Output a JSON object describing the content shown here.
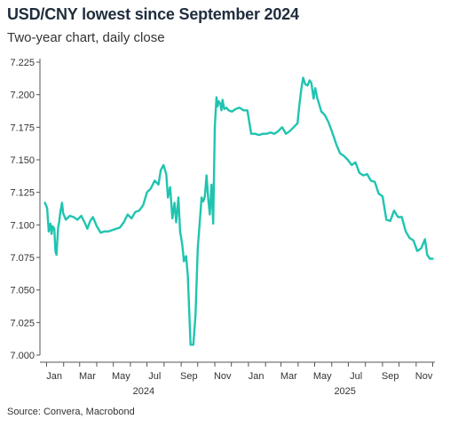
{
  "chart_data": {
    "type": "line",
    "title": "USD/CNY lowest since September 2024",
    "subtitle": "Two-year chart, daily close",
    "source": "Source: Convera, Macrobond",
    "xlabel": "",
    "ylabel": "",
    "ylim": [
      7.0,
      7.225
    ],
    "yticks": [
      "7.000",
      "7.025",
      "7.050",
      "7.075",
      "7.100",
      "7.125",
      "7.150",
      "7.175",
      "7.200",
      "7.225"
    ],
    "xlim": [
      "2023-12-20",
      "2025-12-05"
    ],
    "xticks": [
      {
        "label": "Jan",
        "date": "2024-01-15"
      },
      {
        "label": "Mar",
        "date": "2024-03-15"
      },
      {
        "label": "May",
        "date": "2024-05-15"
      },
      {
        "label": "Jul",
        "date": "2024-07-15"
      },
      {
        "label": "Sep",
        "date": "2024-09-15"
      },
      {
        "label": "Nov",
        "date": "2024-11-15"
      },
      {
        "label": "Jan",
        "date": "2025-01-15"
      },
      {
        "label": "Mar",
        "date": "2025-03-15"
      },
      {
        "label": "May",
        "date": "2025-05-15"
      },
      {
        "label": "Jul",
        "date": "2025-07-15"
      },
      {
        "label": "Sep",
        "date": "2025-09-15"
      },
      {
        "label": "Nov",
        "date": "2025-11-15"
      }
    ],
    "year_labels": [
      {
        "label": "2024",
        "date": "2024-06-25"
      },
      {
        "label": "2025",
        "date": "2025-06-25"
      }
    ],
    "grid": false,
    "legend": "none",
    "series": [
      {
        "color": "#1fc4b0",
        "x": [
          "2023-12-29",
          "2024-01-02",
          "2024-01-05",
          "2024-01-08",
          "2024-01-10",
          "2024-01-12",
          "2024-01-15",
          "2024-01-17",
          "2024-01-19",
          "2024-01-22",
          "2024-01-24",
          "2024-01-26",
          "2024-01-29",
          "2024-01-31",
          "2024-02-05",
          "2024-02-12",
          "2024-02-19",
          "2024-02-26",
          "2024-03-04",
          "2024-03-11",
          "2024-03-15",
          "2024-03-20",
          "2024-03-25",
          "2024-04-01",
          "2024-04-08",
          "2024-04-15",
          "2024-04-22",
          "2024-04-29",
          "2024-05-06",
          "2024-05-13",
          "2024-05-20",
          "2024-05-27",
          "2024-06-03",
          "2024-06-10",
          "2024-06-17",
          "2024-06-24",
          "2024-07-01",
          "2024-07-08",
          "2024-07-15",
          "2024-07-22",
          "2024-07-26",
          "2024-07-31",
          "2024-08-05",
          "2024-08-08",
          "2024-08-12",
          "2024-08-16",
          "2024-08-20",
          "2024-08-23",
          "2024-08-27",
          "2024-08-30",
          "2024-09-03",
          "2024-09-06",
          "2024-09-10",
          "2024-09-13",
          "2024-09-18",
          "2024-09-23",
          "2024-09-27",
          "2024-10-01",
          "2024-10-04",
          "2024-10-08",
          "2024-10-11",
          "2024-10-14",
          "2024-10-17",
          "2024-10-20",
          "2024-10-23",
          "2024-10-26",
          "2024-10-29",
          "2024-11-01",
          "2024-11-04",
          "2024-11-06",
          "2024-11-08",
          "2024-11-11",
          "2024-11-13",
          "2024-11-15",
          "2024-11-18",
          "2024-11-22",
          "2024-11-26",
          "2024-12-02",
          "2024-12-09",
          "2024-12-16",
          "2024-12-23",
          "2024-12-30",
          "2025-01-06",
          "2025-01-13",
          "2025-01-20",
          "2025-01-27",
          "2025-02-03",
          "2025-02-10",
          "2025-02-17",
          "2025-02-24",
          "2025-03-03",
          "2025-03-10",
          "2025-03-17",
          "2025-03-24",
          "2025-03-31",
          "2025-04-03",
          "2025-04-07",
          "2025-04-10",
          "2025-04-14",
          "2025-04-18",
          "2025-04-22",
          "2025-04-25",
          "2025-04-29",
          "2025-05-02",
          "2025-05-06",
          "2025-05-09",
          "2025-05-13",
          "2025-05-16",
          "2025-05-20",
          "2025-05-26",
          "2025-06-02",
          "2025-06-09",
          "2025-06-16",
          "2025-06-23",
          "2025-06-30",
          "2025-07-07",
          "2025-07-14",
          "2025-07-21",
          "2025-07-28",
          "2025-08-04",
          "2025-08-11",
          "2025-08-18",
          "2025-08-25",
          "2025-09-01",
          "2025-09-08",
          "2025-09-15",
          "2025-09-22",
          "2025-09-29",
          "2025-10-06",
          "2025-10-13",
          "2025-10-20",
          "2025-10-27",
          "2025-11-03",
          "2025-11-10",
          "2025-11-17",
          "2025-11-21",
          "2025-11-26",
          "2025-12-01"
        ],
        "y": [
          7.117,
          7.113,
          7.095,
          7.101,
          7.093,
          7.099,
          7.097,
          7.08,
          7.077,
          7.098,
          7.103,
          7.11,
          7.117,
          7.109,
          7.104,
          7.107,
          7.106,
          7.104,
          7.107,
          7.101,
          7.097,
          7.103,
          7.106,
          7.099,
          7.094,
          7.095,
          7.095,
          7.096,
          7.097,
          7.098,
          7.102,
          7.108,
          7.105,
          7.11,
          7.111,
          7.115,
          7.125,
          7.128,
          7.134,
          7.131,
          7.142,
          7.146,
          7.139,
          7.121,
          7.129,
          7.105,
          7.117,
          7.102,
          7.121,
          7.095,
          7.085,
          7.072,
          7.076,
          7.061,
          7.008,
          7.008,
          7.031,
          7.082,
          7.098,
          7.121,
          7.118,
          7.122,
          7.138,
          7.12,
          7.108,
          7.131,
          7.101,
          7.175,
          7.198,
          7.191,
          7.195,
          7.193,
          7.188,
          7.196,
          7.189,
          7.19,
          7.188,
          7.187,
          7.189,
          7.19,
          7.188,
          7.188,
          7.17,
          7.17,
          7.169,
          7.17,
          7.17,
          7.171,
          7.17,
          7.172,
          7.175,
          7.17,
          7.172,
          7.175,
          7.178,
          7.191,
          7.205,
          7.213,
          7.208,
          7.207,
          7.211,
          7.209,
          7.197,
          7.205,
          7.197,
          7.193,
          7.187,
          7.186,
          7.184,
          7.179,
          7.171,
          7.162,
          7.155,
          7.153,
          7.15,
          7.146,
          7.148,
          7.14,
          7.138,
          7.139,
          7.134,
          7.133,
          7.124,
          7.122,
          7.104,
          7.103,
          7.111,
          7.106,
          7.106,
          7.095,
          7.09,
          7.088,
          7.08,
          7.082,
          7.089,
          7.077,
          7.074,
          7.074
        ]
      }
    ]
  }
}
